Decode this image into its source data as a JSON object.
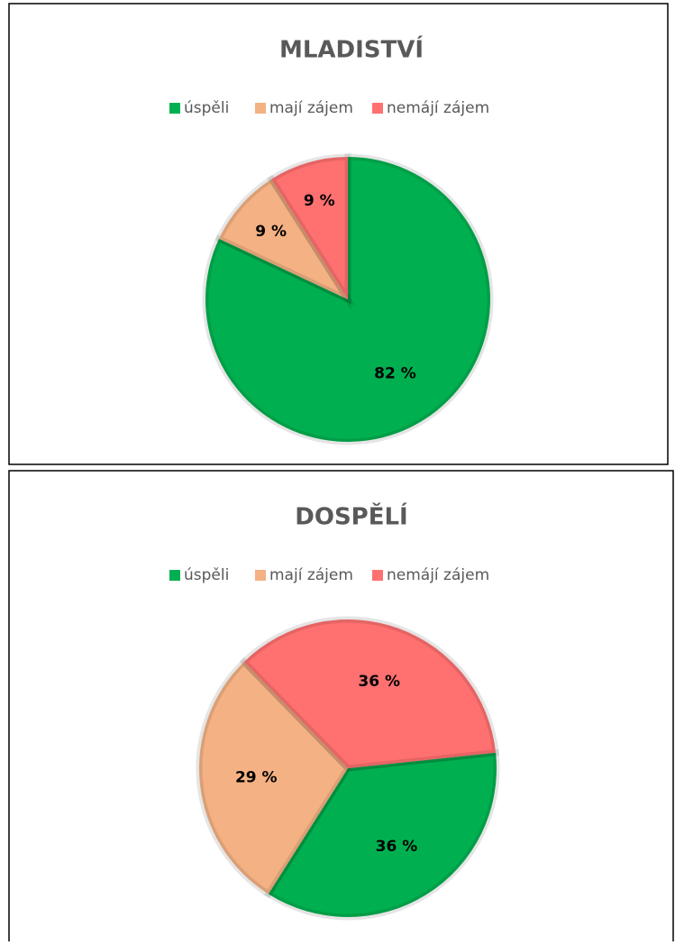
{
  "chart_data": [
    {
      "type": "pie",
      "title": "MLADISTVÍ",
      "categories": [
        "úspěli",
        "mají zájem",
        "nemájí zájem"
      ],
      "values": [
        82,
        9,
        9
      ],
      "value_labels": [
        "82 %",
        "9 %",
        "9 %"
      ],
      "colors": [
        "#00b050",
        "#f4b183",
        "#ff7070"
      ],
      "legend": "top"
    },
    {
      "type": "pie",
      "title": "DOSPĚLÍ",
      "categories": [
        "úspěli",
        "mají zájem",
        "nemájí zájem"
      ],
      "values": [
        36,
        29,
        36
      ],
      "value_labels": [
        "36 %",
        "29 %",
        "36 %"
      ],
      "colors": [
        "#00b050",
        "#f4b183",
        "#ff7070"
      ],
      "legend": "top"
    }
  ]
}
